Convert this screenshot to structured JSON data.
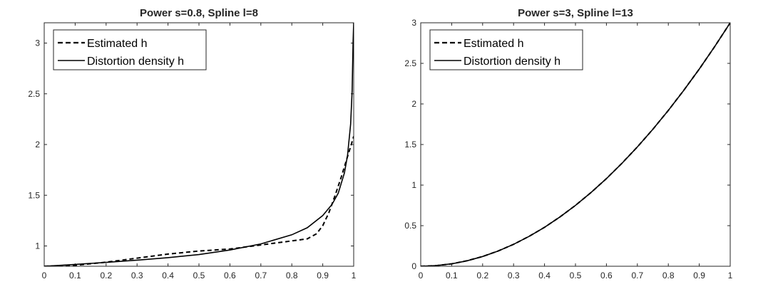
{
  "chart_data": [
    {
      "type": "line",
      "title": "Power s=0.8, Spline l=8",
      "xlabel": "",
      "ylabel": "",
      "xlim": [
        0,
        1
      ],
      "ylim": [
        0.8,
        3.2
      ],
      "xticks": [
        "0",
        "0.1",
        "0.2",
        "0.3",
        "0.4",
        "0.5",
        "0.6",
        "0.7",
        "0.8",
        "0.9",
        "1"
      ],
      "yticks": [
        "1",
        "1.5",
        "2",
        "2.5",
        "3"
      ],
      "legend_position": "top-left",
      "grid": false,
      "series": [
        {
          "name": "Estimated h",
          "style": "dashed",
          "color": "#000000",
          "x": [
            0,
            0.1,
            0.2,
            0.3,
            0.4,
            0.5,
            0.6,
            0.7,
            0.75,
            0.8,
            0.85,
            0.88,
            0.9,
            0.92,
            0.94,
            0.96,
            0.98,
            0.99,
            1
          ],
          "y": [
            0.8,
            0.81,
            0.84,
            0.88,
            0.92,
            0.95,
            0.97,
            1.01,
            1.03,
            1.05,
            1.07,
            1.12,
            1.2,
            1.33,
            1.5,
            1.68,
            1.88,
            1.98,
            2.08
          ]
        },
        {
          "name": "Distortion density h",
          "style": "solid",
          "color": "#000000",
          "x": [
            0,
            0.1,
            0.2,
            0.3,
            0.4,
            0.5,
            0.6,
            0.7,
            0.8,
            0.85,
            0.9,
            0.93,
            0.95,
            0.97,
            0.98,
            0.99,
            0.995,
            0.998,
            1
          ],
          "y": [
            0.8,
            0.818,
            0.838,
            0.86,
            0.885,
            0.915,
            0.96,
            1.02,
            1.11,
            1.18,
            1.3,
            1.41,
            1.52,
            1.72,
            1.89,
            2.2,
            2.53,
            3.0,
            3.2
          ]
        }
      ]
    },
    {
      "type": "line",
      "title": "Power s=3, Spline l=13",
      "xlabel": "",
      "ylabel": "",
      "xlim": [
        0,
        1
      ],
      "ylim": [
        0,
        3
      ],
      "xticks": [
        "0",
        "0.1",
        "0.2",
        "0.3",
        "0.4",
        "0.5",
        "0.6",
        "0.7",
        "0.8",
        "0.9",
        "1"
      ],
      "yticks": [
        "0",
        "0.5",
        "1",
        "1.5",
        "2",
        "2.5",
        "3"
      ],
      "legend_position": "top-left",
      "grid": false,
      "series": [
        {
          "name": "Estimated h",
          "style": "dashed",
          "color": "#000000",
          "x": [
            0,
            0.05,
            0.1,
            0.15,
            0.2,
            0.25,
            0.3,
            0.35,
            0.4,
            0.45,
            0.5,
            0.55,
            0.6,
            0.65,
            0.7,
            0.75,
            0.8,
            0.85,
            0.9,
            0.95,
            1
          ],
          "y": [
            0.0,
            0.008,
            0.03,
            0.068,
            0.12,
            0.188,
            0.27,
            0.368,
            0.48,
            0.608,
            0.75,
            0.908,
            1.08,
            1.268,
            1.47,
            1.688,
            1.92,
            2.168,
            2.43,
            2.708,
            3.0
          ]
        },
        {
          "name": "Distortion density h",
          "style": "solid",
          "color": "#000000",
          "x": [
            0,
            0.05,
            0.1,
            0.15,
            0.2,
            0.25,
            0.3,
            0.35,
            0.4,
            0.45,
            0.5,
            0.55,
            0.6,
            0.65,
            0.7,
            0.75,
            0.8,
            0.85,
            0.9,
            0.95,
            1
          ],
          "y": [
            0.0,
            0.0075,
            0.03,
            0.0675,
            0.12,
            0.1875,
            0.27,
            0.3675,
            0.48,
            0.6075,
            0.75,
            0.9075,
            1.08,
            1.2675,
            1.47,
            1.6875,
            1.92,
            2.1675,
            2.43,
            2.7075,
            3.0
          ]
        }
      ]
    }
  ]
}
